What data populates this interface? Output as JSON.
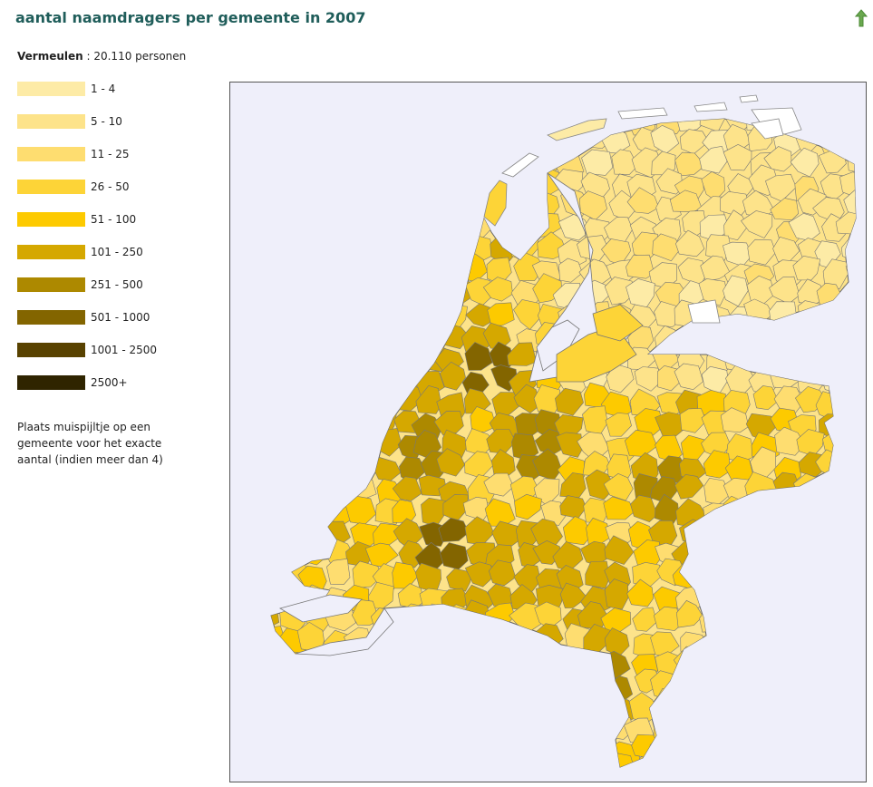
{
  "title": "aantal naamdragers per gemeente in 2007",
  "summary": {
    "name": "Vermeulen",
    "separator": " : ",
    "count": "20.110 personen"
  },
  "legend": [
    {
      "label": "1 - 4",
      "color": "#fdeba6"
    },
    {
      "label": "5 - 10",
      "color": "#fde38a"
    },
    {
      "label": "11 - 25",
      "color": "#fedd70"
    },
    {
      "label": "26 - 50",
      "color": "#fdd437"
    },
    {
      "label": "51 - 100",
      "color": "#fdca00"
    },
    {
      "label": "101 - 250",
      "color": "#d5a800"
    },
    {
      "label": "251 - 500",
      "color": "#ad8900"
    },
    {
      "label": "501 - 1000",
      "color": "#836500"
    },
    {
      "label": "1001 - 2500",
      "color": "#584200"
    },
    {
      "label": "2500+",
      "color": "#2f2400"
    }
  ],
  "note": "Plaats muispijltje op een gemeente voor het exacte aantal (indien meer dan 4)",
  "colors": {
    "title": "#1f5d5a",
    "map_background": "#efeffa",
    "border": "#555555",
    "arrow": "#6aa84f",
    "land_base": "#fde38a"
  },
  "icons": {
    "up_arrow": "up-arrow-icon"
  }
}
